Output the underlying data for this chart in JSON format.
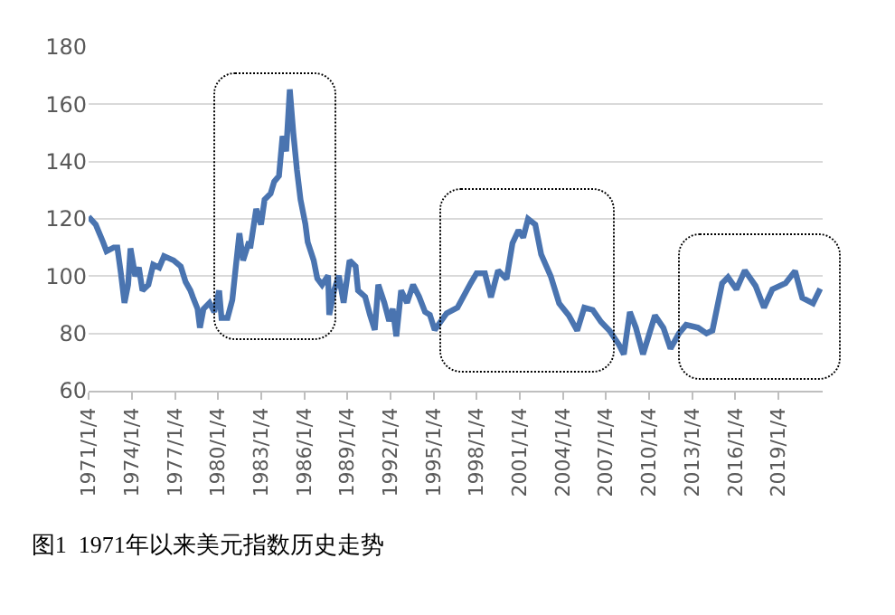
{
  "chart_data": {
    "type": "line",
    "title": "图1  1971年以来美元指数历史走势",
    "x": [
      "1971-01",
      "1971-07",
      "1972-01",
      "1972-04",
      "1972-10",
      "1973-01",
      "1973-04",
      "1973-07",
      "1973-10",
      "1973-12",
      "1974-04",
      "1974-07",
      "1974-10",
      "1975-03",
      "1975-07",
      "1975-12",
      "1976-04",
      "1976-12",
      "1977-06",
      "1977-10",
      "1978-02",
      "1978-04",
      "1978-08",
      "1978-10",
      "1979-01",
      "1979-06",
      "1979-10",
      "1980-02",
      "1980-04",
      "1980-09",
      "1981-01",
      "1981-04",
      "1981-07",
      "1981-10",
      "1982-03",
      "1982-04",
      "1982-09",
      "1983-01",
      "1983-04",
      "1983-09",
      "1983-12",
      "1984-04",
      "1984-07",
      "1984-10",
      "1985-01",
      "1985-04",
      "1985-07",
      "1985-10",
      "1986-02",
      "1986-04",
      "1986-09",
      "1986-12",
      "1987-04",
      "1987-09",
      "1987-10",
      "1988-02",
      "1988-06",
      "1988-10",
      "1989-03",
      "1989-08",
      "1989-10",
      "1990-04",
      "1990-08",
      "1990-12",
      "1991-03",
      "1991-08",
      "1991-12",
      "1992-03",
      "1992-06",
      "1992-10",
      "1993-03",
      "1993-08",
      "1994-01",
      "1994-06",
      "1994-10",
      "1995-02",
      "1995-12",
      "1996-09",
      "1997-08",
      "1998-01",
      "1998-08",
      "1999-01",
      "1999-07",
      "2000-02",
      "2000-07",
      "2000-12",
      "2001-04",
      "2001-08",
      "2002-02",
      "2002-07",
      "2003-03",
      "2003-10",
      "2004-06",
      "2005-01",
      "2005-07",
      "2006-02",
      "2006-09",
      "2007-04",
      "2007-12",
      "2008-04",
      "2008-09",
      "2009-02",
      "2009-08",
      "2010-06",
      "2011-01",
      "2011-07",
      "2012-02",
      "2012-08",
      "2013-06",
      "2014-01",
      "2014-06",
      "2015-02",
      "2015-07",
      "2016-02",
      "2016-09",
      "2017-06",
      "2018-01",
      "2018-08",
      "2019-07",
      "2020-03",
      "2020-09",
      "2021-06",
      "2021-12"
    ],
    "series": [
      {
        "color": "#4a74b0",
        "values": [
          120.7,
          118,
          112,
          108.7,
          110,
          110,
          101,
          90.7,
          97,
          109.7,
          100,
          103,
          95,
          97,
          104,
          103,
          107,
          105.5,
          103.4,
          98,
          95,
          92.8,
          88.6,
          82,
          88.6,
          90.7,
          87.5,
          95,
          85.4,
          85.4,
          91.7,
          103.4,
          115,
          105.5,
          112,
          109.7,
          123.5,
          118,
          126.7,
          128.8,
          133,
          135,
          148.9,
          143.6,
          165.2,
          150,
          137.2,
          126.7,
          118.2,
          111.9,
          105.5,
          99.2,
          97,
          100.2,
          86.5,
          95,
          100.2,
          90.7,
          105.5,
          103.4,
          95,
          92.8,
          86.5,
          81.2,
          97,
          90.7,
          84.3,
          88.6,
          79,
          95,
          90.7,
          97,
          92.8,
          87.5,
          86.5,
          81.2,
          87,
          89,
          97.5,
          101,
          101,
          92.6,
          102,
          99,
          111.5,
          116,
          113.5,
          120,
          118,
          107.6,
          100,
          90.5,
          86.3,
          81,
          89,
          88.2,
          84,
          81,
          76,
          72.7,
          87.5,
          82,
          72.7,
          86.3,
          82,
          74.7,
          80,
          83,
          82,
          80,
          81,
          97.5,
          99.6,
          95.4,
          102,
          96.6,
          89,
          95.4,
          97.5,
          101.8,
          92.4,
          90.5,
          95.6
        ]
      }
    ],
    "xlim": [
      "1971-01-01",
      "2022-02-01"
    ],
    "xticks": [
      {
        "value": "1971-01-04",
        "label": "1971/1/4"
      },
      {
        "value": "1974-01-04",
        "label": "1974/1/4"
      },
      {
        "value": "1977-01-04",
        "label": "1977/1/4"
      },
      {
        "value": "1980-01-04",
        "label": "1980/1/4"
      },
      {
        "value": "1983-01-04",
        "label": "1983/1/4"
      },
      {
        "value": "1986-01-04",
        "label": "1986/1/4"
      },
      {
        "value": "1989-01-04",
        "label": "1989/1/4"
      },
      {
        "value": "1992-01-04",
        "label": "1992/1/4"
      },
      {
        "value": "1995-01-04",
        "label": "1995/1/4"
      },
      {
        "value": "1998-01-04",
        "label": "1998/1/4"
      },
      {
        "value": "2001-01-04",
        "label": "2001/1/4"
      },
      {
        "value": "2004-01-04",
        "label": "2004/1/4"
      },
      {
        "value": "2007-01-04",
        "label": "2007/1/4"
      },
      {
        "value": "2010-01-04",
        "label": "2010/1/4"
      },
      {
        "value": "2013-01-04",
        "label": "2013/1/4"
      },
      {
        "value": "2016-01-04",
        "label": "2016/1/4"
      },
      {
        "value": "2019-01-04",
        "label": "2019/1/4"
      }
    ],
    "ylim": [
      60,
      180
    ],
    "yticks": [
      60,
      80,
      100,
      120,
      140,
      160,
      180
    ],
    "grid": "y",
    "legend": false,
    "marker": "none",
    "line_style": "solid"
  }
}
